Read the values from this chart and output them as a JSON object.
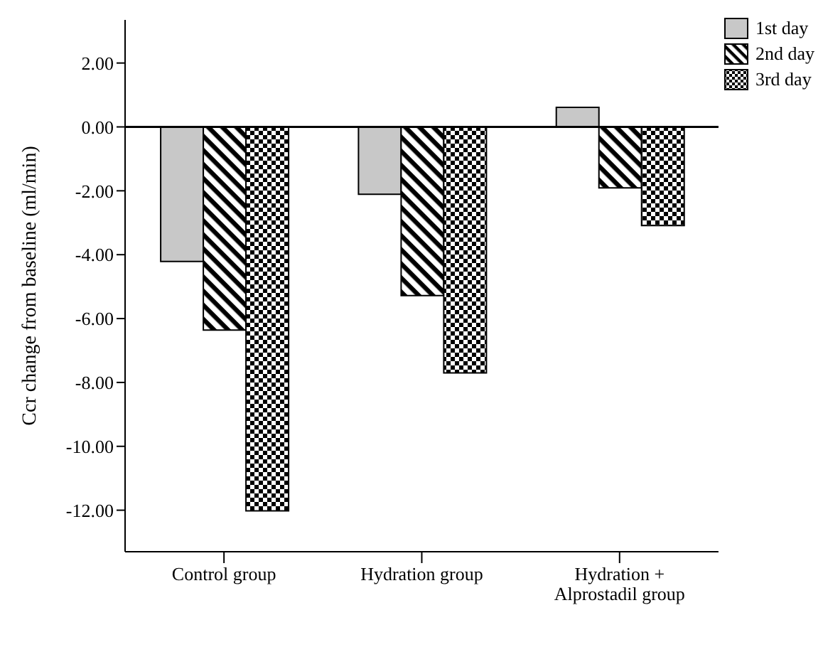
{
  "chart_data": {
    "type": "bar",
    "ylabel": "Ccr change from baseline (ml/min)",
    "categories": [
      "Control group",
      "Hydration group",
      "Hydration + Alprostadil group"
    ],
    "series": [
      {
        "name": "1st day",
        "color": "#c8c8c8",
        "values": [
          -4.21,
          -2.11,
          0.61
        ]
      },
      {
        "name": "2nd day",
        "color": "#000000",
        "values": [
          -6.36,
          -5.28,
          -1.91
        ]
      },
      {
        "name": "3rd day",
        "color": "#000000",
        "values": [
          -12.02,
          -7.7,
          -3.09
        ]
      }
    ],
    "ylim": [
      -13.3,
      3.35
    ],
    "yticks": [
      {
        "value": 2,
        "label": "2.00"
      },
      {
        "value": 0,
        "label": "0.00"
      },
      {
        "value": -2,
        "label": "-2.00"
      },
      {
        "value": -4,
        "label": "-4.00"
      },
      {
        "value": -6,
        "label": "-6.00"
      },
      {
        "value": -8,
        "label": "-8.00"
      },
      {
        "value": -10,
        "label": "-10.00"
      },
      {
        "value": -12,
        "label": "-12.00"
      }
    ],
    "ref_lines": [
      {
        "axis": "y",
        "value": 0,
        "color": "#000000"
      }
    ],
    "grid": false,
    "legend": "top right"
  }
}
